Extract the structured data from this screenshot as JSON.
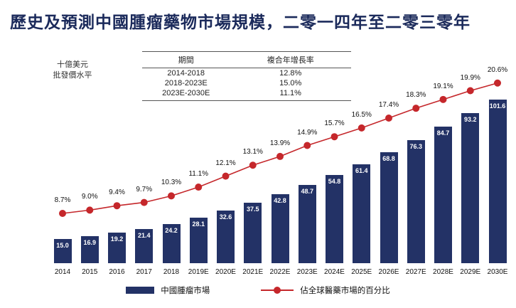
{
  "title": "歷史及預測中國腫瘤藥物市場規模，二零一四年至二零三零年",
  "axis_note": {
    "line1": "十億美元",
    "line2": "批發價水平"
  },
  "cagr_table": {
    "headers": [
      "期間",
      "複合年增長率"
    ],
    "rows": [
      [
        "2014-2018",
        "12.8%"
      ],
      [
        "2018-2023E",
        "15.0%"
      ],
      [
        "2023E-2030E",
        "11.1%"
      ]
    ]
  },
  "legend": {
    "bar_label": "中國腫瘤市場",
    "line_label": "佔全球醫藥市場的百分比"
  },
  "colors": {
    "bar": "#233266",
    "line": "#c5272b",
    "title": "#1b2a5b"
  },
  "chart_data": {
    "type": "bar+line",
    "title": "歷史及預測中國腫瘤藥物市場規模，二零一四年至二零三零年",
    "categories": [
      "2014",
      "2015",
      "2016",
      "2017",
      "2018",
      "2019E",
      "2020E",
      "2021E",
      "2022E",
      "2023E",
      "2024E",
      "2025E",
      "2026E",
      "2027E",
      "2028E",
      "2029E",
      "2030E"
    ],
    "series": [
      {
        "name": "中國腫瘤市場",
        "type": "bar",
        "unit": "十億美元（批發價水平）",
        "values": [
          15.0,
          16.9,
          19.2,
          21.4,
          24.2,
          28.1,
          32.6,
          37.5,
          42.8,
          48.7,
          54.8,
          61.4,
          68.8,
          76.3,
          84.7,
          93.2,
          101.6
        ]
      },
      {
        "name": "佔全球醫藥市場的百分比",
        "type": "line",
        "unit": "%",
        "values": [
          8.7,
          9.0,
          9.4,
          9.7,
          10.3,
          11.1,
          12.1,
          13.1,
          13.9,
          14.9,
          15.7,
          16.5,
          17.4,
          18.3,
          19.1,
          19.9,
          20.6
        ]
      }
    ],
    "grid": false,
    "value_labels_visible": true,
    "legend_position": "bottom"
  }
}
